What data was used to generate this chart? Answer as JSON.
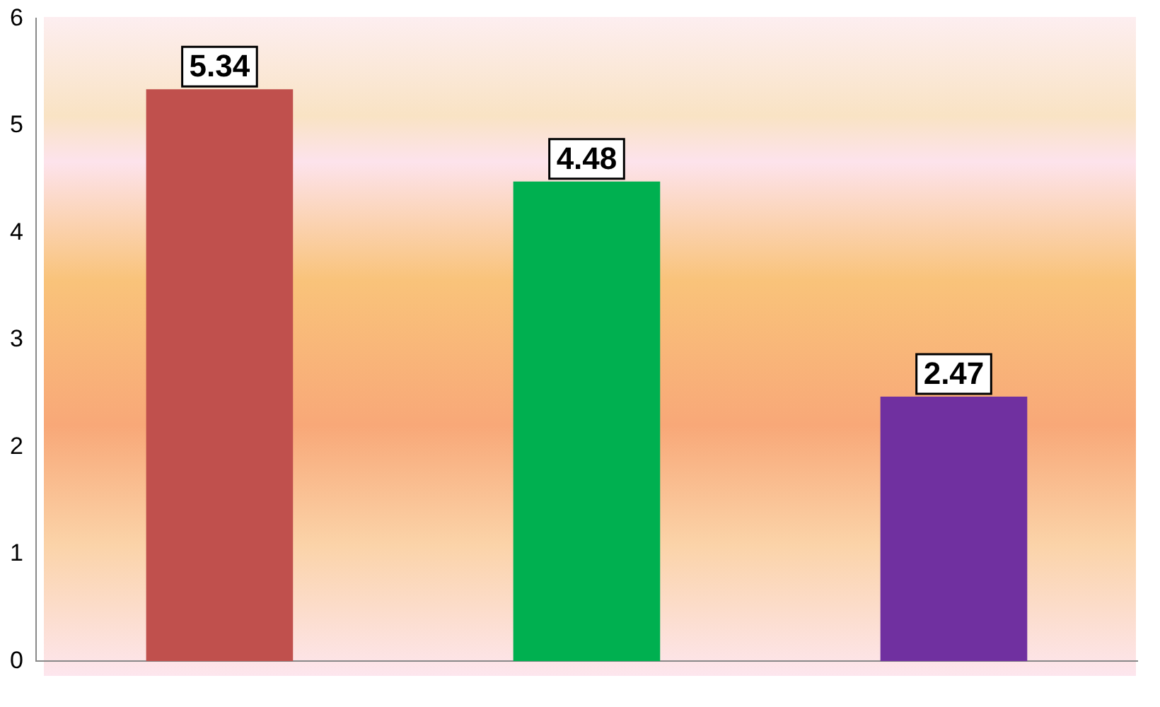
{
  "chart_data": {
    "type": "bar",
    "categories": [
      null,
      null,
      null
    ],
    "values": [
      5.34,
      4.48,
      2.47
    ],
    "colors": [
      "#c0504d",
      "#00b050",
      "#7030a0"
    ],
    "ylim": [
      0,
      6
    ],
    "yticks": [
      0,
      1,
      2,
      3,
      4,
      5,
      6
    ],
    "grid": false,
    "legend": false,
    "data_labels": true
  }
}
